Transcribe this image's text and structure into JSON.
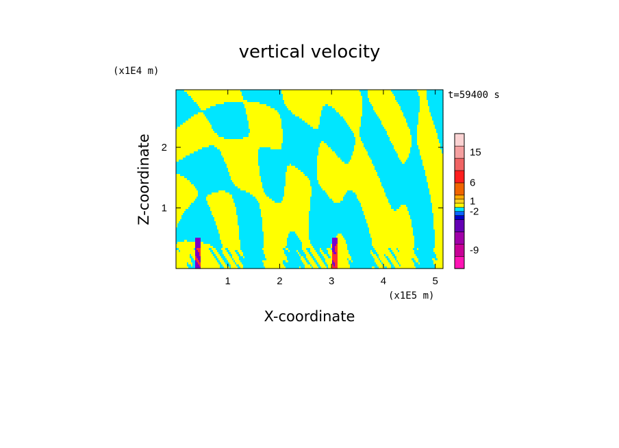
{
  "chart_data": {
    "type": "heatmap",
    "title": "vertical velocity",
    "xlabel": "X-coordinate",
    "ylabel": "Z-coordinate",
    "x_unit": "(x1E5 m)",
    "y_unit": "(x1E4 m)",
    "time_label": "t=59400 s",
    "xlim": [
      0,
      5.15
    ],
    "ylim": [
      0,
      2.95
    ],
    "x_ticks": [
      {
        "value": 1,
        "label": "1"
      },
      {
        "value": 2,
        "label": "2"
      },
      {
        "value": 3,
        "label": "3"
      },
      {
        "value": 4,
        "label": "4"
      },
      {
        "value": 5,
        "label": "5"
      }
    ],
    "y_ticks": [
      {
        "value": 1,
        "label": "1"
      },
      {
        "value": 2,
        "label": "2"
      }
    ],
    "colorbar": {
      "levels": [
        {
          "color": "#ff14b4"
        },
        {
          "color": "#c80096"
        },
        {
          "color": "#a000a8"
        },
        {
          "color": "#6400b4"
        },
        {
          "color": "#0000c8"
        },
        {
          "color": "#0a64ff"
        },
        {
          "color": "#00e6ff"
        },
        {
          "color": "#ffff00"
        },
        {
          "color": "#ffd21e"
        },
        {
          "color": "#ffaa00"
        },
        {
          "color": "#f06400"
        },
        {
          "color": "#ff1e1e"
        },
        {
          "color": "#f06464"
        },
        {
          "color": "#f5a0a0"
        },
        {
          "color": "#fad2d2"
        }
      ],
      "label_entries": [
        {
          "label": "-9",
          "level": 1
        },
        {
          "label": "-2",
          "level": 5.5
        },
        {
          "label": "1",
          "level": 8
        },
        {
          "label": "6",
          "level": 10.5
        },
        {
          "label": "15",
          "level": 13
        }
      ]
    },
    "field_palette": {
      "positive": "#ffff00",
      "negative": "#00e6ff",
      "strong_negative": "#7a00c8",
      "strong_positive": "#ff3030"
    }
  }
}
